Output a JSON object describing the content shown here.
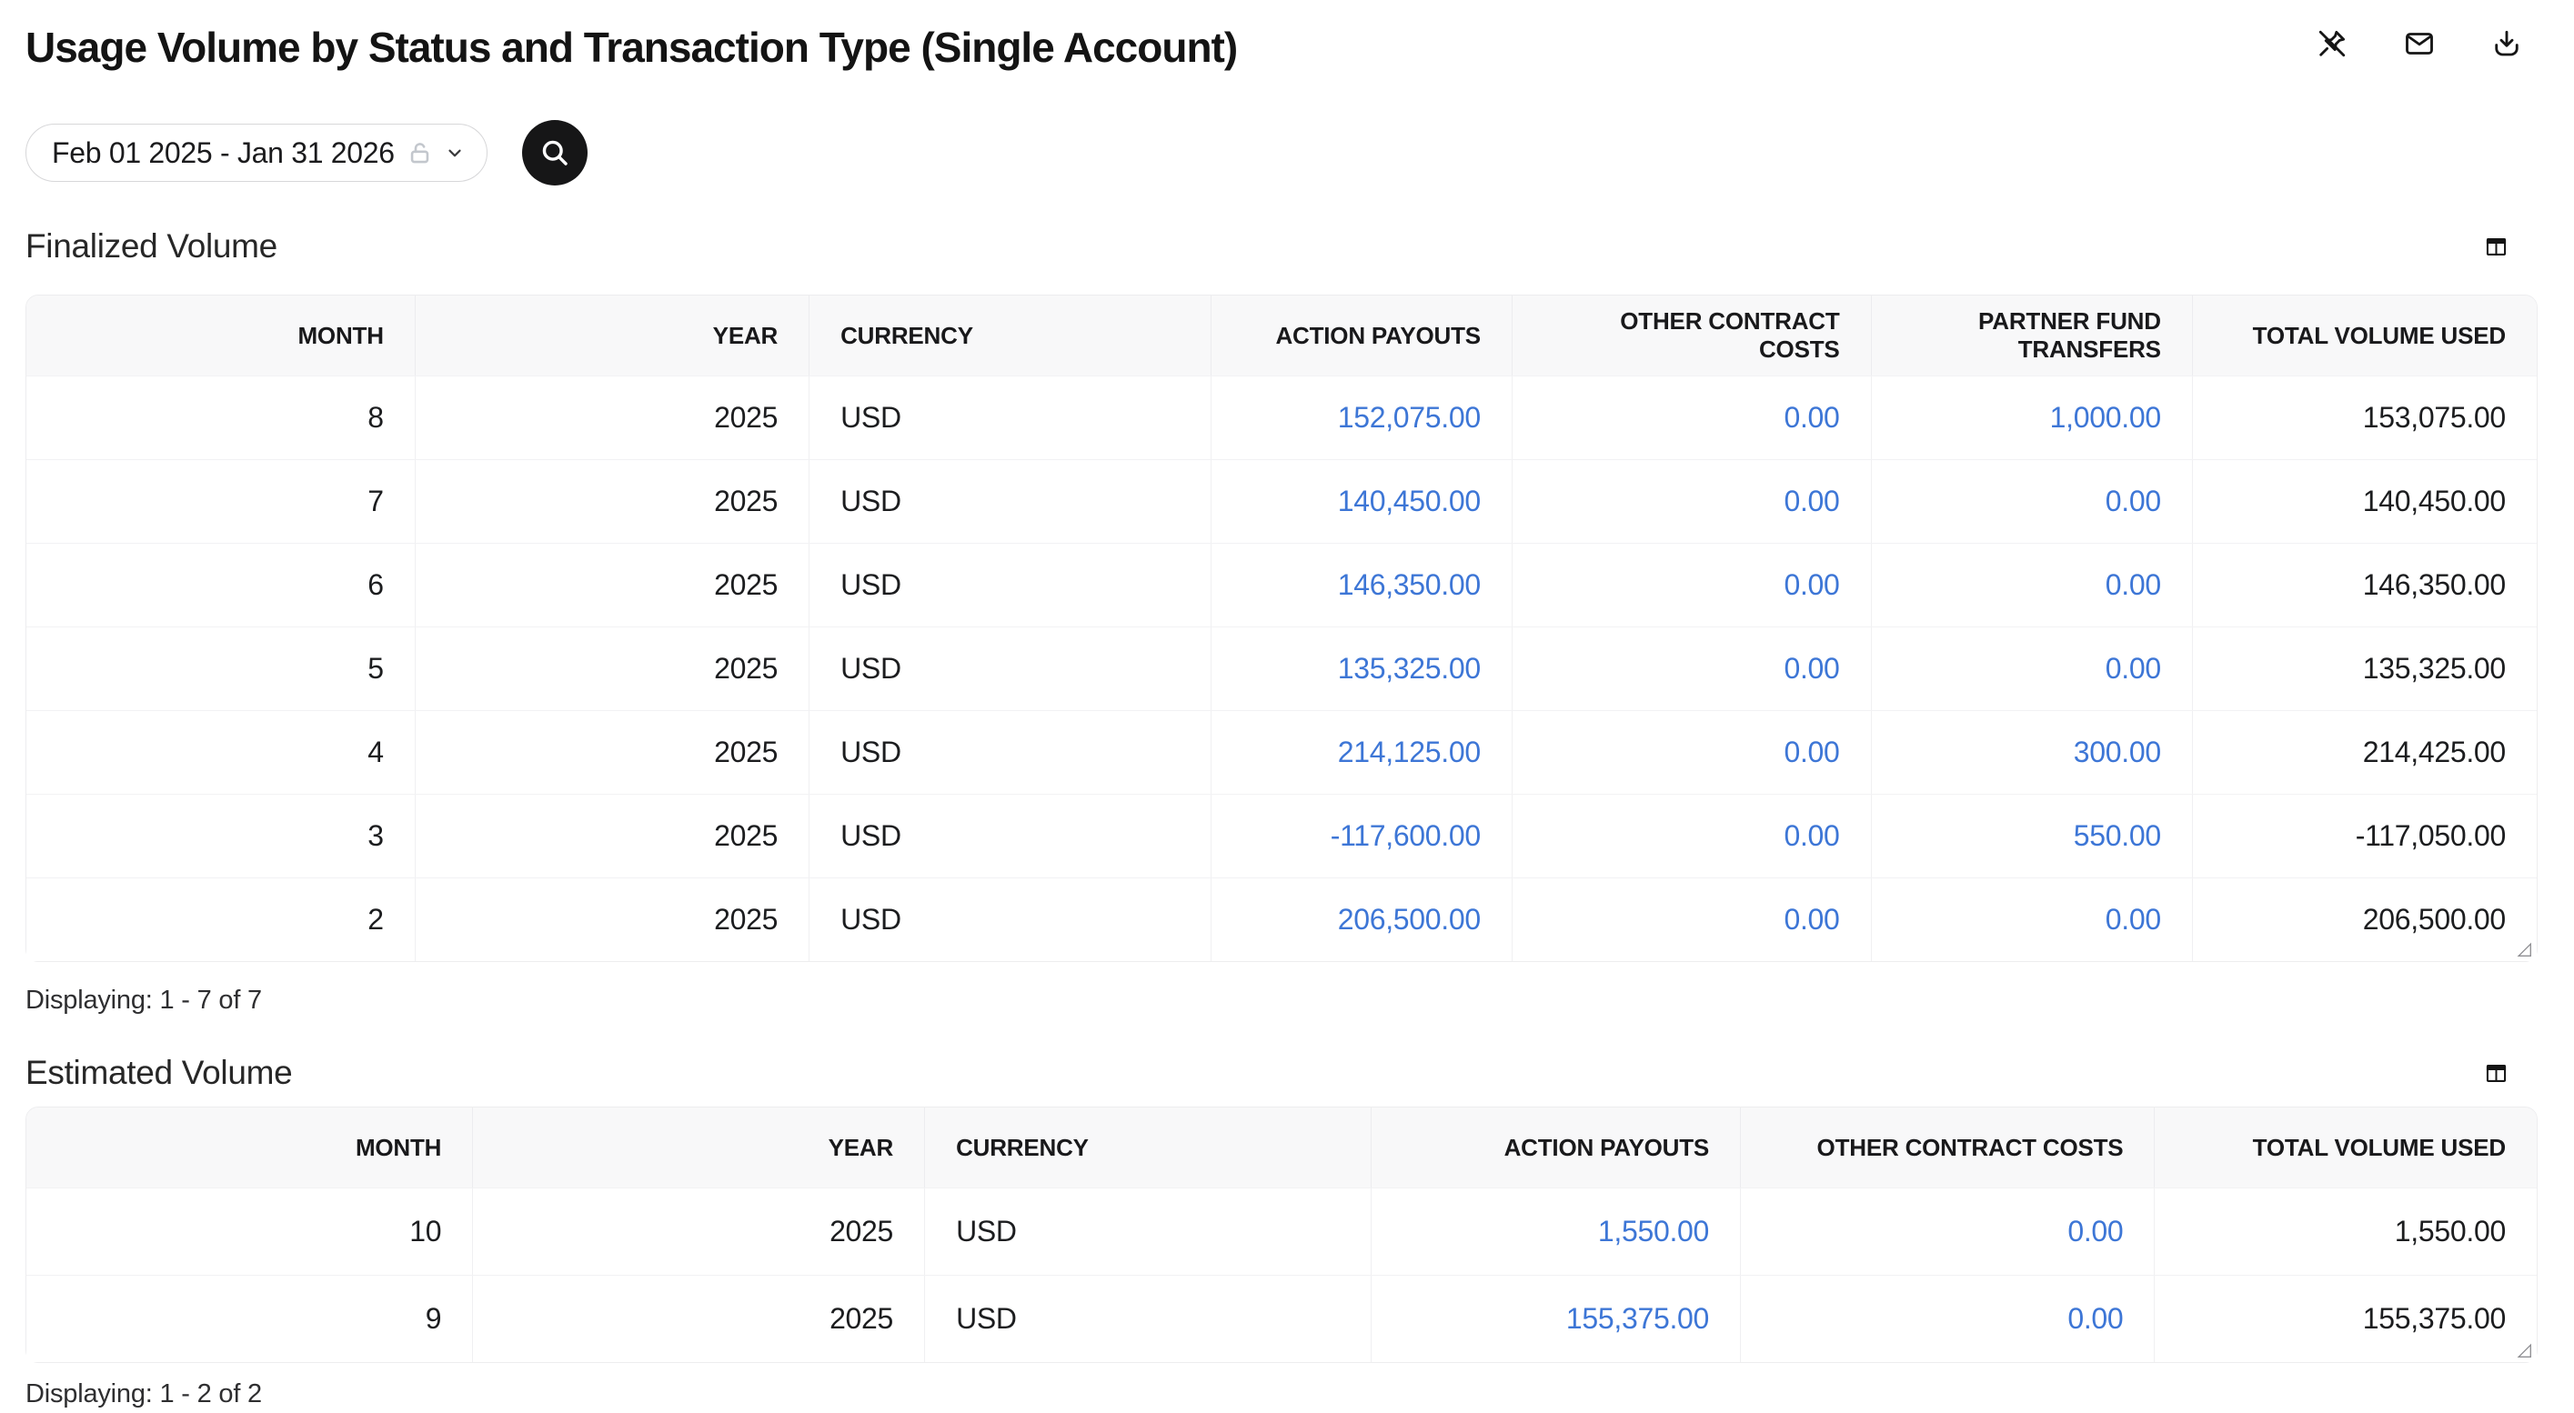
{
  "title": "Usage Volume by Status and Transaction Type (Single Account)",
  "toolbar": {
    "icons": [
      {
        "name": "pin-off-icon",
        "meaning": "unpin report"
      },
      {
        "name": "mail-icon",
        "meaning": "send by email"
      },
      {
        "name": "download-icon",
        "meaning": "download report"
      }
    ]
  },
  "filters": {
    "date_range_value": "Feb 01 2025 - Jan 31 2026",
    "lock_state_icon": "lock-open-icon",
    "dropdown_icon": "chevron-down-icon",
    "search_button_icon": "search-icon"
  },
  "colors": {
    "link_blue": "#3D76D6",
    "search_button_black": "#161617",
    "table_header_bg": "#F8F8F9",
    "text_primary": "#1C1D1F"
  },
  "sections": [
    {
      "title": "Finalized Volume",
      "columns": [
        "MONTH",
        "YEAR",
        "CURRENCY",
        "ACTION PAYOUTS",
        "OTHER CONTRACT COSTS",
        "PARTNER FUND TRANSFERS",
        "TOTAL VOLUME USED"
      ],
      "rows": [
        [
          "8",
          "2025",
          "USD",
          "152,075.00",
          "0.00",
          "1,000.00",
          "153,075.00"
        ],
        [
          "7",
          "2025",
          "USD",
          "140,450.00",
          "0.00",
          "0.00",
          "140,450.00"
        ],
        [
          "6",
          "2025",
          "USD",
          "146,350.00",
          "0.00",
          "0.00",
          "146,350.00"
        ],
        [
          "5",
          "2025",
          "USD",
          "135,325.00",
          "0.00",
          "0.00",
          "135,325.00"
        ],
        [
          "4",
          "2025",
          "USD",
          "214,125.00",
          "0.00",
          "300.00",
          "214,425.00"
        ],
        [
          "3",
          "2025",
          "USD",
          "-117,600.00",
          "0.00",
          "550.00",
          "-117,050.00"
        ],
        [
          "2",
          "2025",
          "USD",
          "206,500.00",
          "0.00",
          "0.00",
          "206,500.00"
        ]
      ],
      "displaying": "Displaying: 1 - 7 of 7"
    },
    {
      "title": "Estimated Volume",
      "columns": [
        "MONTH",
        "YEAR",
        "CURRENCY",
        "ACTION PAYOUTS",
        "OTHER CONTRACT COSTS",
        "TOTAL VOLUME USED"
      ],
      "rows": [
        [
          "10",
          "2025",
          "USD",
          "1,550.00",
          "0.00",
          "1,550.00"
        ],
        [
          "9",
          "2025",
          "USD",
          "155,375.00",
          "0.00",
          "155,375.00"
        ]
      ],
      "displaying": "Displaying: 1 - 2 of 2"
    }
  ]
}
